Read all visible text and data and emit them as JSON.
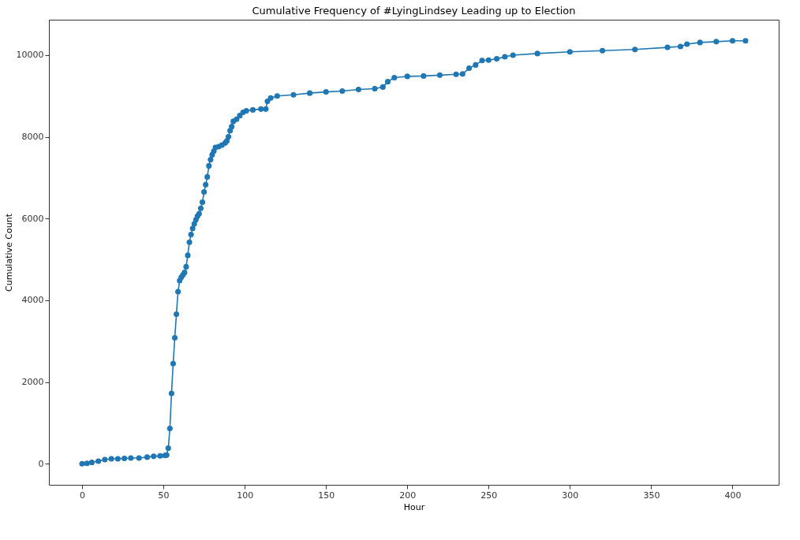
{
  "chart_data": {
    "type": "line",
    "title": "Cumulative Frequency of #LyingLindsey Leading up to Election",
    "xlabel": "Hour",
    "ylabel": "Cumulative Count",
    "xlim": [
      -20.4,
      428.4
    ],
    "xticks": [
      0,
      50,
      100,
      150,
      200,
      250,
      300,
      350,
      400
    ],
    "ylim": [
      -517.5,
      10867.5
    ],
    "yticks": [
      0,
      2000,
      4000,
      6000,
      8000,
      10000
    ],
    "grid": false,
    "marker": "circle",
    "line_style": "solid",
    "series": [
      {
        "color": "#1f77b4",
        "x": [
          0,
          3,
          6,
          10,
          14,
          18,
          22,
          26,
          30,
          35,
          40,
          44,
          48,
          51,
          52,
          53,
          54,
          55,
          56,
          57,
          58,
          59,
          60,
          61,
          62,
          63,
          64,
          65,
          66,
          67,
          68,
          69,
          70,
          71,
          72,
          73,
          74,
          75,
          76,
          77,
          78,
          79,
          80,
          81,
          82,
          84,
          86,
          88,
          89,
          90,
          91,
          92,
          93,
          95,
          97,
          99,
          101,
          105,
          110,
          113,
          114,
          116,
          120,
          130,
          140,
          150,
          160,
          170,
          180,
          185,
          188,
          192,
          200,
          210,
          220,
          230,
          234,
          238,
          242,
          246,
          250,
          255,
          260,
          265,
          280,
          300,
          320,
          340,
          360,
          368,
          372,
          380,
          390,
          400,
          408
        ],
        "values": [
          0,
          10,
          30,
          60,
          100,
          120,
          120,
          130,
          140,
          140,
          160,
          180,
          190,
          200,
          210,
          380,
          860,
          1720,
          2450,
          3080,
          3660,
          4210,
          4480,
          4560,
          4620,
          4680,
          4820,
          5100,
          5420,
          5610,
          5760,
          5870,
          5970,
          6060,
          6120,
          6250,
          6400,
          6650,
          6830,
          7020,
          7290,
          7440,
          7560,
          7650,
          7740,
          7760,
          7800,
          7850,
          7900,
          8000,
          8150,
          8250,
          8380,
          8430,
          8520,
          8600,
          8640,
          8660,
          8680,
          8680,
          8870,
          8950,
          9000,
          9030,
          9070,
          9100,
          9120,
          9160,
          9180,
          9220,
          9350,
          9450,
          9480,
          9490,
          9510,
          9530,
          9540,
          9680,
          9760,
          9870,
          9880,
          9910,
          9960,
          10000,
          10040,
          10080,
          10110,
          10140,
          10190,
          10210,
          10270,
          10310,
          10330,
          10350,
          10350
        ]
      }
    ]
  }
}
